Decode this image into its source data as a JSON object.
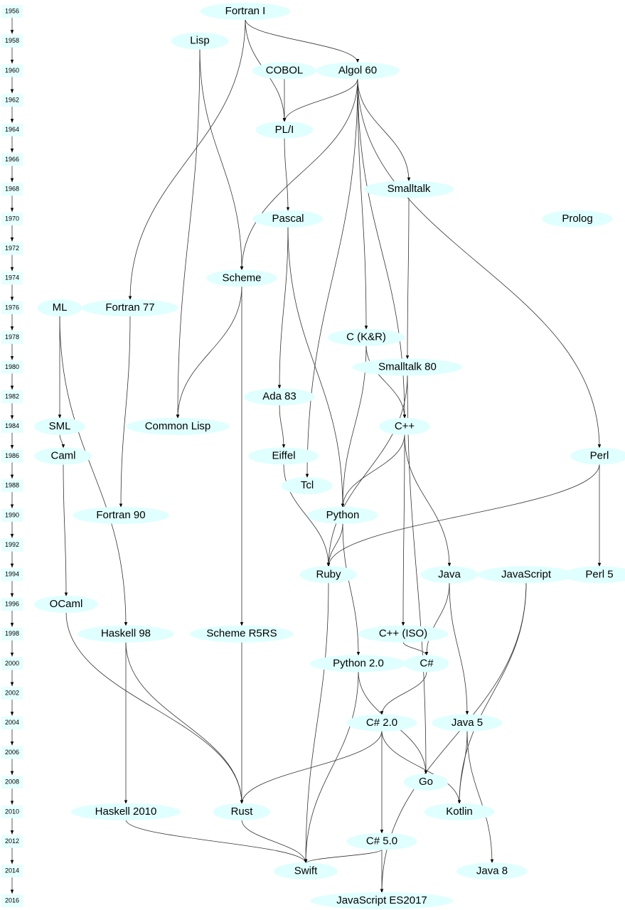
{
  "timeline": {
    "years": [
      "1956",
      "1958",
      "1960",
      "1962",
      "1964",
      "1966",
      "1968",
      "1970",
      "1972",
      "1974",
      "1976",
      "1978",
      "1980",
      "1982",
      "1984",
      "1986",
      "1988",
      "1990",
      "1992",
      "1994",
      "1996",
      "1998",
      "2000",
      "2002",
      "2004",
      "2006",
      "2008",
      "2010",
      "2012",
      "2014",
      "2016"
    ]
  },
  "nodes": [
    {
      "label": "Fortran I"
    },
    {
      "label": "Lisp"
    },
    {
      "label": "COBOL"
    },
    {
      "label": "Algol 60"
    },
    {
      "label": "PL/I"
    },
    {
      "label": "Smalltalk"
    },
    {
      "label": "Pascal"
    },
    {
      "label": "Prolog"
    },
    {
      "label": "Scheme"
    },
    {
      "label": "ML"
    },
    {
      "label": "Fortran 77"
    },
    {
      "label": "C (K&R)"
    },
    {
      "label": "Smalltalk 80"
    },
    {
      "label": "Ada 83"
    },
    {
      "label": "SML"
    },
    {
      "label": "Common Lisp"
    },
    {
      "label": "C++"
    },
    {
      "label": "Caml"
    },
    {
      "label": "Eiffel"
    },
    {
      "label": "Perl"
    },
    {
      "label": "Tcl"
    },
    {
      "label": "Fortran 90"
    },
    {
      "label": "Python"
    },
    {
      "label": "Ruby"
    },
    {
      "label": "Java"
    },
    {
      "label": "JavaScript"
    },
    {
      "label": "Perl 5"
    },
    {
      "label": "OCaml"
    },
    {
      "label": "Haskell 98"
    },
    {
      "label": "Scheme R5RS"
    },
    {
      "label": "C++ (ISO)"
    },
    {
      "label": "Python 2.0"
    },
    {
      "label": "C#"
    },
    {
      "label": "C# 2.0"
    },
    {
      "label": "Java 5"
    },
    {
      "label": "Go"
    },
    {
      "label": "Haskell 2010"
    },
    {
      "label": "Rust"
    },
    {
      "label": "Kotlin"
    },
    {
      "label": "C# 5.0"
    },
    {
      "label": "Swift"
    },
    {
      "label": "Java 8"
    },
    {
      "label": "JavaScript ES2017"
    }
  ]
}
